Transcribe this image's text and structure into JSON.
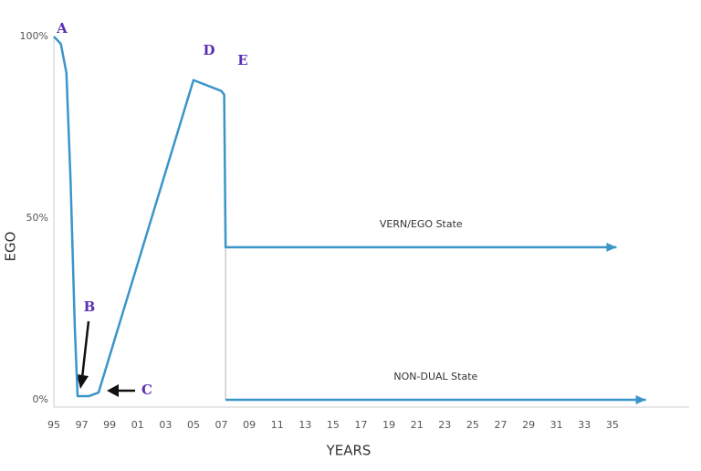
{
  "chart_data": {
    "type": "line",
    "xlabel": "YEARS",
    "ylabel": "EGO",
    "xlim": [
      1995,
      2040.5
    ],
    "ylim": [
      -2,
      100
    ],
    "xticks": [
      {
        "value": 1995,
        "label": "95"
      },
      {
        "value": 1997,
        "label": "97"
      },
      {
        "value": 1999,
        "label": "99"
      },
      {
        "value": 2001,
        "label": "01"
      },
      {
        "value": 2003,
        "label": "03"
      },
      {
        "value": 2005,
        "label": "05"
      },
      {
        "value": 2007,
        "label": "07"
      },
      {
        "value": 2009,
        "label": "09"
      },
      {
        "value": 2011,
        "label": "11"
      },
      {
        "value": 2013,
        "label": "13"
      },
      {
        "value": 2015,
        "label": "15"
      },
      {
        "value": 2017,
        "label": "17"
      },
      {
        "value": 2019,
        "label": "19"
      },
      {
        "value": 2021,
        "label": "21"
      },
      {
        "value": 2023,
        "label": "23"
      },
      {
        "value": 2025,
        "label": "25"
      },
      {
        "value": 2027,
        "label": "27"
      },
      {
        "value": 2029,
        "label": "29"
      },
      {
        "value": 2031,
        "label": "31"
      },
      {
        "value": 2033,
        "label": "33"
      },
      {
        "value": 2035,
        "label": "35"
      }
    ],
    "yticks": [
      {
        "value": 0,
        "label": "0%"
      },
      {
        "value": 50,
        "label": "50%"
      },
      {
        "value": 100,
        "label": "100%"
      }
    ],
    "series": [
      {
        "name": "VERN/EGO State",
        "color": "#3a95c9",
        "x": [
          1995,
          1995.5,
          1995.9,
          1996.2,
          1996.5,
          1996.7,
          1997.5,
          1998.2,
          2005,
          2007,
          2007.2,
          2007.3,
          2035.3
        ],
        "values": [
          100,
          98,
          90,
          60,
          20,
          1,
          1,
          2,
          88,
          85,
          84,
          42,
          42
        ]
      },
      {
        "name": "NON-DUAL State",
        "color": "#3a95c9",
        "x": [
          2007.3,
          2037.4
        ],
        "values": [
          0,
          0
        ]
      }
    ],
    "annotations": [
      "A",
      "B",
      "C",
      "D",
      "E"
    ]
  }
}
